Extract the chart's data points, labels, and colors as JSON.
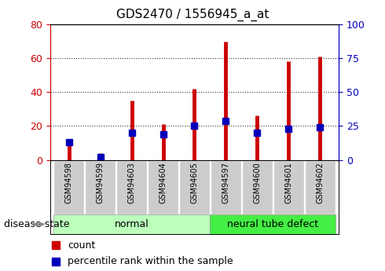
{
  "title": "GDS2470 / 1556945_a_at",
  "samples": [
    "GSM94598",
    "GSM94599",
    "GSM94603",
    "GSM94604",
    "GSM94605",
    "GSM94597",
    "GSM94600",
    "GSM94601",
    "GSM94602"
  ],
  "count_values": [
    11,
    4,
    35,
    21,
    42,
    70,
    26,
    58,
    61
  ],
  "percentile_values": [
    13,
    2,
    20,
    19,
    25,
    29,
    20,
    23,
    24
  ],
  "groups": [
    {
      "label": "normal",
      "start": 0,
      "end": 5,
      "color": "#bbffbb"
    },
    {
      "label": "neural tube defect",
      "start": 5,
      "end": 9,
      "color": "#44ee44"
    }
  ],
  "bar_color": "#cc0000",
  "percentile_color": "#0000bb",
  "left_axis_color": "#cc0000",
  "right_axis_color": "#0000bb",
  "ylim_left": [
    0,
    80
  ],
  "ylim_right": [
    0,
    100
  ],
  "yticks_left": [
    0,
    20,
    40,
    60,
    80
  ],
  "yticks_right": [
    0,
    25,
    50,
    75,
    100
  ],
  "legend_count": "count",
  "legend_percentile": "percentile rank within the sample",
  "disease_state_label": "disease state",
  "bar_width": 0.08,
  "stem_linewidth": 3.5,
  "marker_size": 6
}
